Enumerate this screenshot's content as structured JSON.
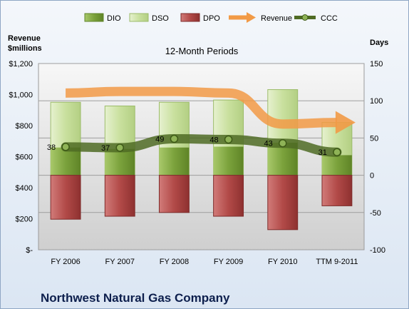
{
  "chart_data": {
    "type": "bar",
    "title": "12-Month Periods",
    "company": "Northwest Natural Gas Company",
    "left_axis_label": [
      "Revenue",
      "$millions"
    ],
    "right_axis_label": "Days",
    "categories": [
      "FY 2006",
      "FY 2007",
      "FY 2008",
      "FY 2009",
      "FY 2010",
      "TTM 9-2011"
    ],
    "left_ticks": [
      "$-",
      "$200",
      "$400",
      "$600",
      "$800",
      "$1,000",
      "$1,200"
    ],
    "right_ticks": [
      "-100",
      "-50",
      "0",
      "50",
      "100",
      "150"
    ],
    "ylim_days": [
      -100,
      150
    ],
    "ylim_revenue": [
      0,
      1200
    ],
    "grid": true,
    "legend_position": "top",
    "series": [
      {
        "name": "DIO",
        "kind": "bar",
        "axis": "days",
        "values": [
          0,
          0,
          0,
          0,
          0,
          0
        ],
        "color": "#7aa43e"
      },
      {
        "name": "DSO",
        "kind": "bar",
        "axis": "days",
        "values": [
          98,
          93,
          98,
          101,
          115,
          71
        ],
        "color": "#c7dfa0"
      },
      {
        "name": "DPO",
        "kind": "bar",
        "axis": "days",
        "values": [
          -59,
          -55,
          -50,
          -55,
          -73,
          -41
        ],
        "color": "#b24a48"
      },
      {
        "name": "Revenue",
        "kind": "arrow",
        "axis": "revenue",
        "values": [
          1010,
          1020,
          1020,
          1010,
          810,
          820
        ],
        "color": "#f29a46"
      },
      {
        "name": "CCC",
        "kind": "line",
        "axis": "days",
        "values": [
          38,
          37,
          49,
          48,
          43,
          31
        ],
        "color": "#5b7a2a"
      }
    ],
    "ccc_labels": [
      "38",
      "37",
      "49",
      "48",
      "43",
      "31"
    ]
  }
}
